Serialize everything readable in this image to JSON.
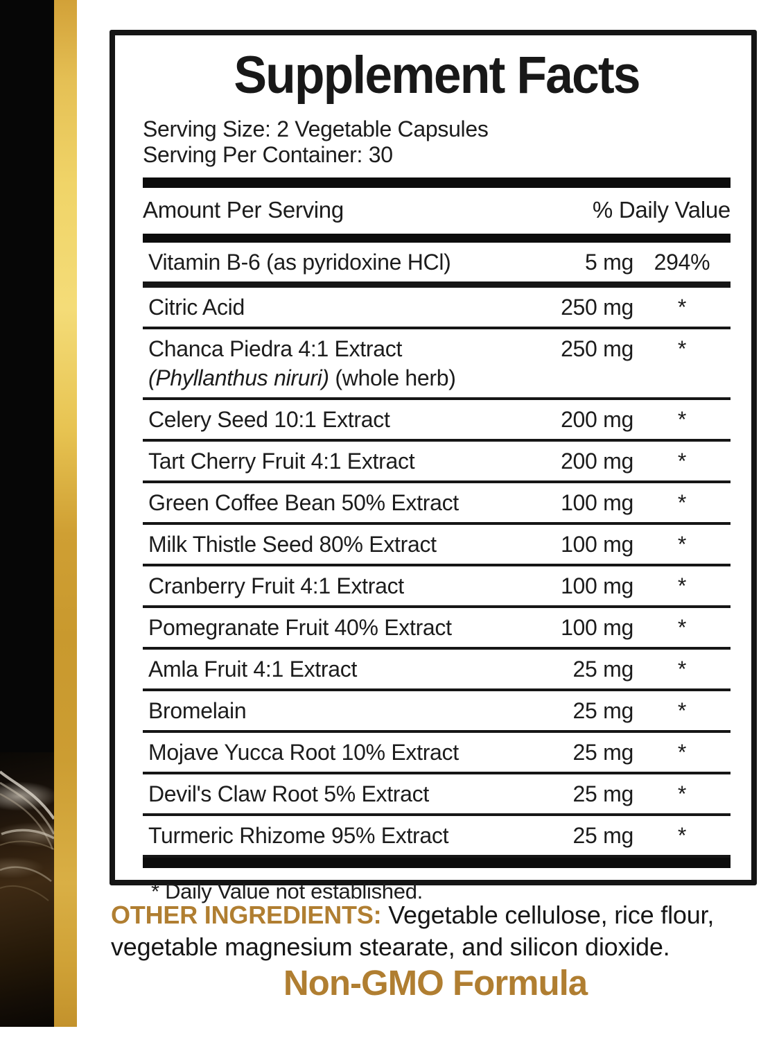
{
  "colors": {
    "gold_text": "#b07e31",
    "gold_band": "#c9992e",
    "panel_border": "#151515"
  },
  "label": {
    "title": "Supplement Facts",
    "serving_size": "Serving Size: 2 Vegetable Capsules",
    "servings_per_container": "Serving Per Container: 30",
    "header": {
      "amount_col": "Amount Per Serving",
      "dv_col": "% Daily Value"
    },
    "rows": [
      {
        "name": "Vitamin B-6 (as pyridoxine HCl)",
        "amount": "5 mg",
        "dv": "294%"
      },
      {
        "name": "Citric Acid",
        "amount": "250 mg",
        "dv": "*"
      },
      {
        "name": "Chanca Piedra 4:1 Extract",
        "amount": "250 mg",
        "dv": "*",
        "sub": [
          {
            "text": "(Phyllanthus niruri)",
            "italic": true
          },
          {
            "text": " (whole herb)",
            "italic": false
          }
        ]
      },
      {
        "name": "Celery Seed 10:1 Extract",
        "amount": "200 mg",
        "dv": "*"
      },
      {
        "name": "Tart Cherry Fruit 4:1 Extract",
        "amount": "200 mg",
        "dv": "*"
      },
      {
        "name": "Green Coffee Bean 50% Extract",
        "amount": "100 mg",
        "dv": "*"
      },
      {
        "name": "Milk Thistle Seed 80% Extract",
        "amount": "100 mg",
        "dv": "*"
      },
      {
        "name": "Cranberry Fruit 4:1 Extract",
        "amount": "100 mg",
        "dv": "*"
      },
      {
        "name": "Pomegranate Fruit 40% Extract",
        "amount": "100 mg",
        "dv": "*"
      },
      {
        "name": "Amla Fruit 4:1 Extract",
        "amount": "25 mg",
        "dv": "*"
      },
      {
        "name": "Bromelain",
        "amount": "25 mg",
        "dv": "*"
      },
      {
        "name": "Mojave Yucca Root 10% Extract",
        "amount": "25 mg",
        "dv": "*"
      },
      {
        "name": "Devil's Claw Root 5% Extract",
        "amount": "25 mg",
        "dv": "*"
      },
      {
        "name": "Turmeric Rhizome 95% Extract",
        "amount": "25 mg",
        "dv": "*"
      }
    ],
    "footnote": "* Daily Value not established."
  },
  "other_ingredients": {
    "label": "OTHER INGREDIENTS:",
    "text": " Vegetable cellulose, rice flour, vegetable magnesium stearate, and silicon dioxide."
  },
  "non_gmo": "Non-GMO Formula"
}
